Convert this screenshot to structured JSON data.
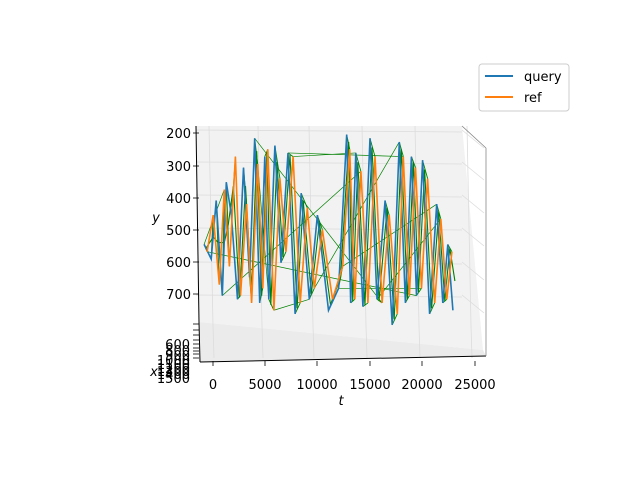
{
  "chart_data": {
    "type": "line",
    "projection": "3d",
    "xlabel": "t",
    "ylabel": "y",
    "zlabel": "x",
    "t_ticks": [
      "0",
      "5000",
      "10000",
      "15000",
      "20000",
      "25000"
    ],
    "y_ticks": [
      "200",
      "300",
      "400",
      "500",
      "600",
      "700"
    ],
    "x_ticks": [
      "600",
      "800",
      "900",
      "1000",
      "1100",
      "1200",
      "1300",
      "1400",
      "1500"
    ],
    "t_range": [
      -800,
      25500
    ],
    "y_range": [
      200,
      800
    ],
    "legend": {
      "position": "top-right",
      "entries": [
        "query",
        "ref"
      ]
    },
    "colors": {
      "query": "#1f77b4",
      "ref": "#ff7f0e",
      "alignment": "#008000"
    },
    "series": [
      {
        "name": "query",
        "t": [
          0,
          700,
          1200,
          1800,
          2200,
          2700,
          3300,
          3900,
          4500,
          5000,
          5500,
          6000,
          6400,
          7000,
          7600,
          8300,
          9000,
          9600,
          10400,
          11200,
          12300,
          13300,
          14100,
          14500,
          15000,
          15700,
          16400,
          17100,
          17900,
          18600,
          19300,
          19900,
          20500,
          21000,
          21600,
          22300,
          23000,
          23600,
          24100,
          24600
        ],
        "y": [
          540,
          580,
          420,
          680,
          370,
          460,
          690,
          330,
          630,
          250,
          700,
          300,
          690,
          270,
          590,
          290,
          730,
          400,
          690,
          460,
          720,
          660,
          240,
          700,
          290,
          710,
          250,
          690,
          420,
          760,
          260,
          700,
          300,
          680,
          310,
          730,
          430,
          700,
          540,
          720
        ]
      },
      {
        "name": "ref",
        "t": [
          300,
          900,
          1500,
          2000,
          2500,
          3100,
          3600,
          4200,
          4700,
          5300,
          5800,
          6300,
          6900,
          7500,
          8100,
          8800,
          9500,
          10200,
          10900,
          11700,
          12700,
          13700,
          14400,
          14900,
          15500,
          16200,
          16900,
          17600,
          18300,
          19100,
          19700,
          20300,
          20900,
          21500,
          22100,
          22800,
          23400,
          24000,
          24500
        ],
        "y": [
          560,
          460,
          650,
          390,
          600,
          300,
          680,
          430,
          700,
          320,
          660,
          280,
          720,
          360,
          560,
          300,
          700,
          440,
          660,
          500,
          690,
          600,
          280,
          690,
          340,
          700,
          300,
          700,
          460,
          730,
          300,
          680,
          330,
          660,
          360,
          700,
          470,
          690,
          560
        ]
      }
    ]
  },
  "legend_labels": {
    "query": "query",
    "ref": "ref"
  }
}
